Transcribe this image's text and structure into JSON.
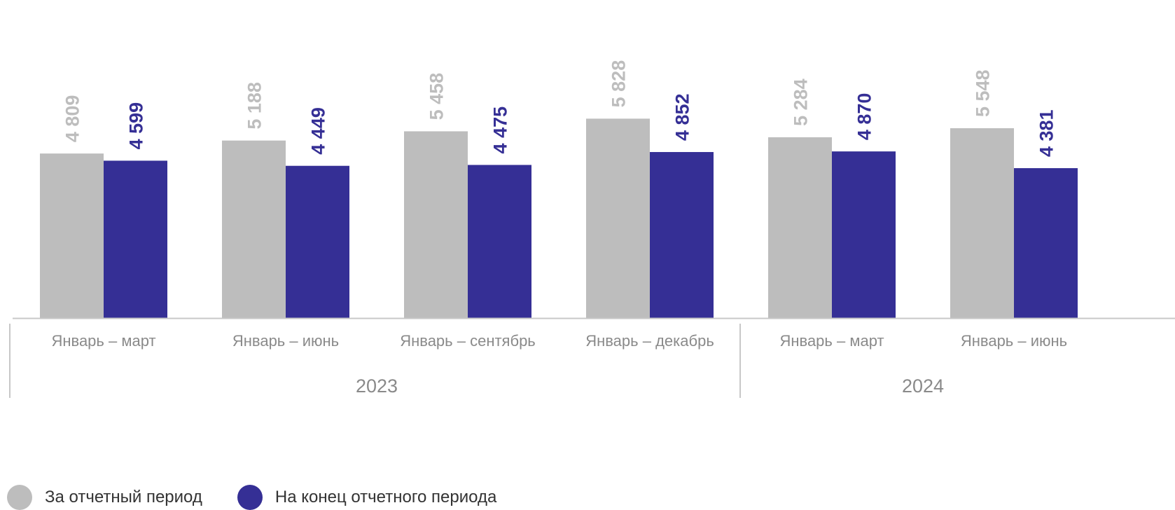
{
  "chart_data": {
    "type": "bar",
    "categories": [
      "Январь – март",
      "Январь – июнь",
      "Январь – сентябрь",
      "Январь – декабрь",
      "Январь – март",
      "Январь – июнь"
    ],
    "groups": [
      {
        "label": "2023",
        "span": 4
      },
      {
        "label": "2024",
        "span": 2
      }
    ],
    "series": [
      {
        "name": "За отчетный период",
        "color": "#bdbdbd",
        "values": [
          4809,
          5188,
          5458,
          5828,
          5284,
          5548
        ],
        "labels": [
          "4 809",
          "5 188",
          "5 458",
          "5 828",
          "5 284",
          "5 548"
        ]
      },
      {
        "name": "На конец отчетного периода",
        "color": "#352f95",
        "values": [
          4599,
          4449,
          4475,
          4852,
          4870,
          4381
        ],
        "labels": [
          "4 599",
          "4 449",
          "4 475",
          "4 852",
          "4 870",
          "4 381"
        ]
      }
    ],
    "ylim": [
      0,
      7500
    ],
    "grid": false,
    "legend_position": "bottom-left"
  }
}
